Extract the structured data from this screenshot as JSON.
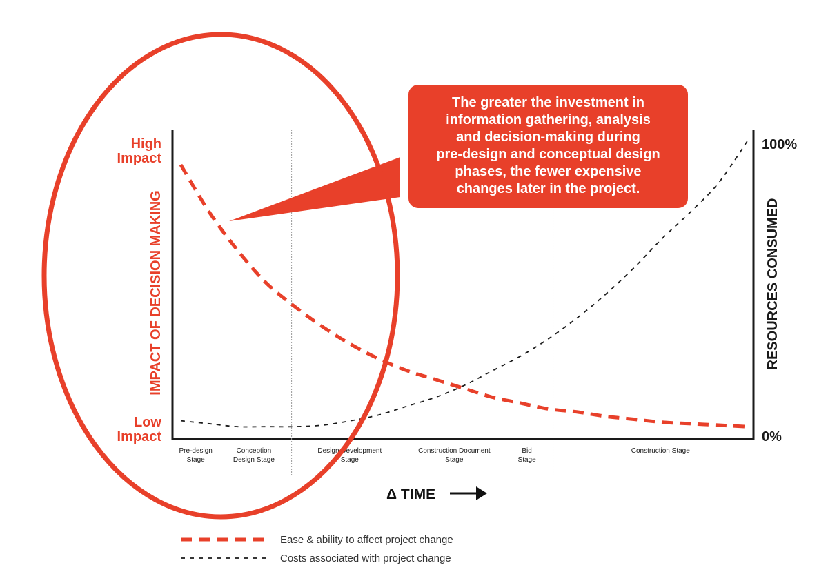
{
  "chart_data": {
    "type": "line",
    "x_axis_label": "Δ TIME",
    "left_axis": {
      "title": "IMPACT OF DECISION MAKING",
      "top_label": [
        "High",
        "Impact"
      ],
      "bottom_label": [
        "Low",
        "Impact"
      ]
    },
    "right_axis": {
      "title": "RESOURCES CONSUMED",
      "top_label": "100%",
      "bottom_label": "0%"
    },
    "ylim": [
      0,
      100
    ],
    "stages": [
      {
        "label": [
          "Pre-design",
          "Stage"
        ],
        "start": 0,
        "end": 0.205
      },
      {
        "label": [
          "Conception",
          "Design Stage"
        ],
        "start": 0.205,
        "end": 0.205
      },
      {
        "label": [
          "Design Development",
          "Stage"
        ],
        "start": 0.205,
        "end": 0.655
      },
      {
        "label": [
          "Construction Document",
          "Stage"
        ],
        "start": 0.655,
        "end": 0.655
      },
      {
        "label": [
          "Bid",
          "Stage"
        ],
        "start": 0.655,
        "end": 0.655
      },
      {
        "label": [
          "Construction Stage"
        ],
        "start": 0.655,
        "end": 1
      }
    ],
    "stage_centers": [
      0.04,
      0.14,
      0.305,
      0.485,
      0.61,
      0.84
    ],
    "dividers": [
      0.205,
      0.655
    ],
    "series": [
      {
        "name": "Ease & ability to affect project change",
        "color": "#e8402a",
        "style": "long-dash",
        "x": [
          0,
          0.05,
          0.1,
          0.15,
          0.2,
          0.25,
          0.3,
          0.35,
          0.4,
          0.45,
          0.5,
          0.55,
          0.6,
          0.65,
          0.7,
          0.75,
          0.8,
          0.85,
          0.9,
          0.95,
          1
        ],
        "values": [
          92,
          76,
          63,
          52,
          44,
          37,
          31,
          26,
          22,
          19,
          16,
          13,
          11,
          9,
          8,
          6.5,
          5.5,
          4.5,
          4,
          3.5,
          3
        ]
      },
      {
        "name": "Costs associated with project change",
        "color": "#1a1a1a",
        "style": "short-dash",
        "x": [
          0,
          0.05,
          0.1,
          0.15,
          0.2,
          0.25,
          0.3,
          0.35,
          0.4,
          0.45,
          0.5,
          0.55,
          0.6,
          0.65,
          0.7,
          0.75,
          0.8,
          0.85,
          0.9,
          0.95,
          1
        ],
        "values": [
          5,
          4,
          3,
          3,
          3,
          3.5,
          5,
          7,
          10,
          13,
          17,
          22,
          27,
          33,
          40,
          48,
          57,
          67,
          76,
          86,
          100
        ]
      }
    ],
    "callout": [
      "The greater the investment in",
      "information gathering, analysis",
      "and decision-making during",
      "pre-design and conceptual design",
      "phases, the fewer expensive",
      "changes later in the project."
    ],
    "accent_color": "#e8402a"
  }
}
